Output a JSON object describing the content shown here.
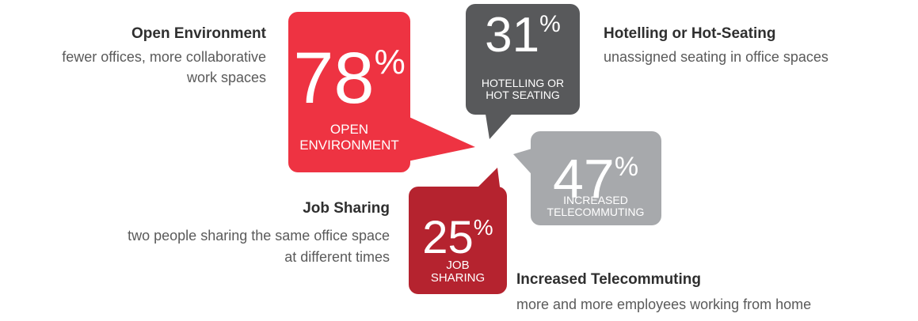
{
  "items": [
    {
      "value": 78,
      "unit": "%",
      "label_lines": [
        "OPEN",
        "ENVIRONMENT"
      ],
      "title": "Open Environment",
      "description_lines": [
        "fewer offices, more collaborative",
        "work spaces"
      ],
      "color": "#ee3342"
    },
    {
      "value": 31,
      "unit": "%",
      "label_lines": [
        "HOTELLING OR",
        "HOT SEATING"
      ],
      "title": "Hotelling or Hot-Seating",
      "description_lines": [
        "unassigned seating in office spaces"
      ],
      "color": "#58595b"
    },
    {
      "value": 47,
      "unit": "%",
      "label_lines": [
        "INCREASED",
        "TELECOMMUTING"
      ],
      "title": "Increased Telecommuting",
      "description_lines": [
        "more and more employees working from home"
      ],
      "color": "#a7a9ac"
    },
    {
      "value": 25,
      "unit": "%",
      "label_lines": [
        "JOB",
        "SHARING"
      ],
      "title": "Job Sharing",
      "description_lines": [
        "two people sharing the same office space",
        "at different times"
      ],
      "color": "#b5232f"
    }
  ]
}
